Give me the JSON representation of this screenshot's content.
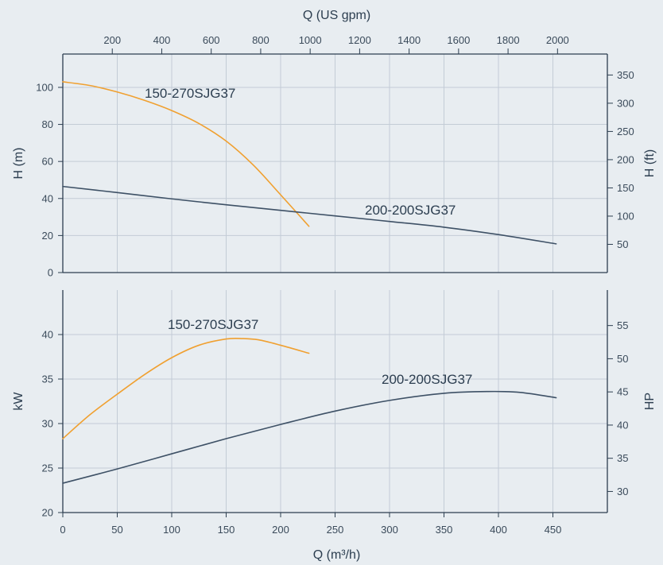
{
  "colors": {
    "background": "#e8edf1",
    "grid": "#c3ccd6",
    "axis": "#2c3e50",
    "series_orange": "#f0a030",
    "series_navy": "#3e5166"
  },
  "chart_data": [
    {
      "type": "line",
      "panel": "head",
      "xlabel": "Q (m³/h)",
      "x2label": "Q (US gpm)",
      "ylabel": "H (m)",
      "y2label": "H (ft)",
      "xlim": [
        0,
        500
      ],
      "ylim": [
        0,
        118
      ],
      "x_ticks": [
        0,
        50,
        100,
        150,
        200,
        250,
        300,
        350,
        400,
        450
      ],
      "y_ticks": [
        0,
        20,
        40,
        60,
        80,
        100
      ],
      "x2_ticks": [
        200,
        400,
        600,
        800,
        1000,
        1200,
        1400,
        1600,
        1800,
        2000
      ],
      "y2_ticks": [
        50,
        100,
        150,
        200,
        250,
        300,
        350
      ],
      "grid": true,
      "series": [
        {
          "name": "150-270SJG37",
          "color": "#f0a030",
          "x": [
            0,
            25,
            50,
            75,
            100,
            125,
            150,
            175,
            200,
            226
          ],
          "y": [
            103,
            101,
            97.5,
            93,
            87.5,
            80.5,
            71,
            58,
            42,
            25
          ]
        },
        {
          "name": "200-200SJG37",
          "color": "#3e5166",
          "x": [
            0,
            50,
            100,
            150,
            200,
            250,
            300,
            350,
            400,
            453
          ],
          "y": [
            46.5,
            43.2,
            39.8,
            36.6,
            33.6,
            30.6,
            27.6,
            24.5,
            20.5,
            15.5
          ]
        }
      ]
    },
    {
      "type": "line",
      "panel": "power",
      "xlabel": "Q (m³/h)",
      "ylabel": "kW",
      "y2label": "HP",
      "xlim": [
        0,
        500
      ],
      "ylim": [
        20,
        45
      ],
      "x_ticks": [
        0,
        50,
        100,
        150,
        200,
        250,
        300,
        350,
        400,
        450
      ],
      "y_ticks": [
        20,
        25,
        30,
        35,
        40
      ],
      "y2_ticks": [
        30,
        35,
        40,
        45,
        50,
        55
      ],
      "grid": true,
      "series": [
        {
          "name": "150-270SJG37",
          "color": "#f0a030",
          "x": [
            0,
            25,
            50,
            75,
            100,
            125,
            150,
            165,
            180,
            200,
            226
          ],
          "y": [
            28.3,
            31.0,
            33.3,
            35.5,
            37.4,
            38.8,
            39.5,
            39.55,
            39.4,
            38.8,
            37.9
          ]
        },
        {
          "name": "200-200SJG37",
          "color": "#3e5166",
          "x": [
            0,
            50,
            100,
            150,
            200,
            250,
            300,
            350,
            390,
            420,
            453
          ],
          "y": [
            23.3,
            24.9,
            26.6,
            28.3,
            29.9,
            31.4,
            32.6,
            33.4,
            33.6,
            33.5,
            32.9
          ]
        }
      ]
    }
  ]
}
